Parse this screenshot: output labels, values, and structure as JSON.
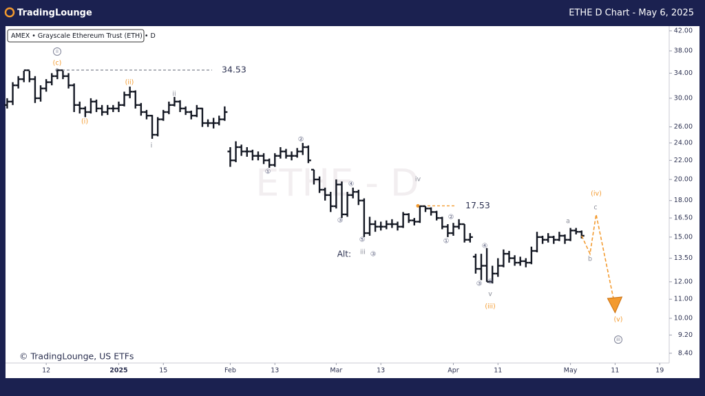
{
  "header": {
    "logo": "TradingLounge",
    "title": "ETHE D Chart - May 6, 2025"
  },
  "chart_data": {
    "type": "ohlc",
    "symbol_label": "AMEX • Grayscale Ethereum Trust (ETH) • D",
    "watermark": "ETHE - D",
    "footer": "© TradingLounge, US ETFs",
    "color": "#131722",
    "log_scale": true,
    "grid": false,
    "xlim": [
      -7.3,
      111.7
    ],
    "xticks": [
      {
        "value": 0,
        "label": "12"
      },
      {
        "value": 13,
        "label": "2025"
      },
      {
        "value": 21,
        "label": "15"
      },
      {
        "value": 33,
        "label": "Feb"
      },
      {
        "value": 41,
        "label": "13"
      },
      {
        "value": 52,
        "label": "Mar"
      },
      {
        "value": 60,
        "label": "13"
      },
      {
        "value": 73,
        "label": "Apr"
      },
      {
        "value": 81,
        "label": "11"
      },
      {
        "value": 94,
        "label": "May"
      },
      {
        "value": 102,
        "label": "11"
      },
      {
        "value": 110,
        "label": "19"
      }
    ],
    "ylim": [
      8.0,
      43.0
    ],
    "yticks": [
      {
        "value": 42,
        "label": "42.00"
      },
      {
        "value": 38,
        "label": "38.00"
      },
      {
        "value": 34,
        "label": "34.00"
      },
      {
        "value": 30,
        "label": "30.00"
      },
      {
        "value": 26,
        "label": "26.00"
      },
      {
        "value": 24,
        "label": "24.00"
      },
      {
        "value": 22,
        "label": "22.00"
      },
      {
        "value": 20,
        "label": "20.00"
      },
      {
        "value": 18,
        "label": "18.00"
      },
      {
        "value": 16.5,
        "label": "16.50"
      },
      {
        "value": 15,
        "label": "15.00"
      },
      {
        "value": 13.5,
        "label": "13.50"
      },
      {
        "value": 12,
        "label": "12.00"
      },
      {
        "value": 11,
        "label": "11.00"
      },
      {
        "value": 10,
        "label": "10.00"
      },
      {
        "value": 9.2,
        "label": "9.20"
      },
      {
        "value": 8.4,
        "label": "8.40"
      }
    ],
    "x": [
      -7,
      -6,
      -5,
      -4,
      -3,
      -2,
      -1,
      0,
      1,
      2,
      3,
      4,
      5,
      6,
      7,
      8,
      9,
      10,
      11,
      12,
      13,
      14,
      15,
      16,
      17,
      18,
      19,
      20,
      21,
      22,
      23,
      24,
      25,
      26,
      27,
      28,
      29,
      30,
      31,
      32,
      33,
      34,
      35,
      36,
      37,
      38,
      39,
      40,
      41,
      42,
      43,
      44,
      45,
      46,
      47,
      48,
      49,
      50,
      51,
      52,
      53,
      54,
      55,
      56,
      57,
      58,
      59,
      60,
      61,
      62,
      63,
      64,
      65,
      66,
      67,
      68,
      69,
      70,
      71,
      72,
      73,
      74,
      75,
      76,
      77,
      78,
      79,
      80,
      81,
      82,
      83,
      84,
      85,
      86,
      87,
      88,
      89,
      90,
      91,
      92,
      93,
      94,
      95,
      96
    ],
    "open": [
      29,
      29.5,
      32,
      33,
      34.5,
      33,
      30,
      31.5,
      32.5,
      33.5,
      34.5,
      33.5,
      32,
      29,
      28.5,
      28,
      29.5,
      28.5,
      28,
      28.5,
      28.5,
      29,
      30.5,
      31,
      29,
      28,
      27.5,
      25,
      27,
      28,
      29,
      29.5,
      28.5,
      28,
      27.5,
      28.5,
      26.5,
      26.5,
      26.5,
      27,
      23,
      22,
      23.5,
      23,
      23,
      22.5,
      22.5,
      22,
      21.5,
      22.5,
      23,
      22.5,
      22.5,
      23,
      23.5,
      21,
      20,
      19,
      18.5,
      17.5,
      19.5,
      16.8,
      18.5,
      18.8,
      18,
      15.3,
      16,
      15.8,
      15.8,
      16,
      16,
      15.8,
      16.8,
      16.3,
      16.2,
      17.5,
      17.3,
      17,
      16.5,
      15.8,
      15.3,
      15.8,
      16,
      14.8,
      13.6,
      12.8,
      13,
      12,
      12.5,
      13,
      13.8,
      13.5,
      13.2,
      13.3,
      13.2,
      14,
      15,
      14.8,
      15,
      14.8,
      15.1,
      14.8,
      15.5,
      15.4
    ],
    "high": [
      30,
      32.5,
      33.5,
      34.4,
      34.4,
      33.5,
      32,
      33,
      34,
      34.53,
      34.4,
      34,
      32.3,
      29.5,
      28.8,
      30,
      29.8,
      29,
      29,
      29,
      29.5,
      31,
      31.8,
      31.2,
      29.3,
      28.3,
      27.6,
      27.3,
      28.3,
      29.5,
      30.2,
      29.7,
      28.8,
      28.2,
      29,
      28.6,
      27,
      27.2,
      27.5,
      28.8,
      23.5,
      24.2,
      23.8,
      23.5,
      23.2,
      23,
      22.8,
      22.2,
      22.8,
      23.5,
      23.3,
      23,
      23.4,
      24,
      23.7,
      21,
      20.3,
      19.2,
      18.8,
      20,
      19.8,
      18.8,
      19.2,
      19,
      18.2,
      16.6,
      16.3,
      16.2,
      16.3,
      16.4,
      16.2,
      17,
      16.9,
      16.5,
      17.53,
      17.5,
      17.4,
      17.1,
      16.6,
      16,
      16.1,
      16.4,
      16,
      15.3,
      13.8,
      13.8,
      14.2,
      13,
      13.5,
      14.1,
      14,
      13.7,
      13.6,
      13.5,
      14.3,
      15.4,
      15.1,
      15.3,
      15.1,
      15.4,
      15.2,
      15.7,
      15.7,
      15.5
    ],
    "low": [
      28.5,
      29,
      31.5,
      32.5,
      32.5,
      29.3,
      29.5,
      31,
      32,
      33,
      33,
      31.5,
      28,
      27.8,
      27.3,
      27.8,
      28,
      27.5,
      27.6,
      28,
      28,
      28.8,
      30,
      28.5,
      27.5,
      27,
      24.5,
      24.8,
      26.8,
      27.7,
      28.8,
      28,
      27.6,
      27,
      27.3,
      26,
      26,
      25.8,
      26.2,
      26.8,
      21.3,
      21.8,
      22.5,
      22.4,
      22,
      22,
      21.6,
      21.2,
      21.3,
      22.2,
      22.2,
      22,
      22.3,
      22.6,
      21.7,
      19.5,
      18.7,
      18,
      17,
      17.3,
      16.5,
      16.6,
      18.2,
      17.6,
      15,
      15.1,
      15.4,
      15.5,
      15.6,
      15.7,
      15.5,
      15.7,
      16.1,
      15.9,
      16.1,
      17,
      16.7,
      16.3,
      15.6,
      15,
      15.1,
      15.6,
      14.6,
      14.6,
      12.5,
      12.1,
      12,
      11.9,
      12.3,
      12.9,
      13.2,
      13,
      13,
      12.9,
      13.1,
      13.9,
      14.5,
      14.6,
      14.5,
      14.7,
      14.5,
      14.7,
      15.2,
      14.9
    ],
    "close": [
      29.5,
      32,
      33,
      34.5,
      33,
      30,
      31.5,
      32.5,
      33.5,
      34.5,
      33.5,
      32,
      29,
      28.5,
      28,
      29.5,
      28.5,
      28,
      28.5,
      28.5,
      29,
      30.5,
      31,
      29,
      28,
      27.5,
      25,
      27,
      28,
      29,
      29.5,
      28.5,
      28,
      27.5,
      28.5,
      26.5,
      26.5,
      26.5,
      27,
      28,
      22,
      23.5,
      23,
      23,
      22.5,
      22.5,
      22,
      21.5,
      22.5,
      23,
      22.5,
      22.5,
      23,
      23.5,
      22,
      20,
      19,
      18.5,
      17.5,
      19.5,
      16.8,
      18.5,
      18.8,
      18,
      15.3,
      16,
      15.8,
      15.8,
      16,
      16,
      15.8,
      16.8,
      16.3,
      16.2,
      17.5,
      17.3,
      17,
      16.5,
      15.8,
      15.3,
      15.8,
      16,
      14.8,
      15,
      12.8,
      13,
      12,
      12.5,
      13,
      13.8,
      13.5,
      13.2,
      13.3,
      13.2,
      14,
      15,
      14.8,
      15,
      14.8,
      15.1,
      14.8,
      15.5,
      15.4,
      15.1
    ],
    "price_levels": [
      {
        "value": 34.53,
        "color": "#8a8d99"
      },
      {
        "value": 17.53,
        "color": "#f39a2e"
      }
    ],
    "projection": {
      "color": "#f39a2e",
      "x": [
        96,
        97.5,
        98.6,
        102
      ],
      "values": [
        15.1,
        13.8,
        16.8,
        10.6
      ]
    },
    "wave_labels": [
      {
        "text": "ii",
        "color": "#7d8196"
      },
      {
        "text": "(c)",
        "color": "#f39a2e"
      },
      {
        "text": "(ii)",
        "color": "#f39a2e"
      },
      {
        "text": "(i)",
        "color": "#f39a2e"
      },
      {
        "text": "ii",
        "color": "#8a8d99"
      },
      {
        "text": "i",
        "color": "#8a8d99"
      },
      {
        "text": "②",
        "color": "#5a5f7d"
      },
      {
        "text": "①",
        "color": "#5a5f7d"
      },
      {
        "text": "④",
        "color": "#5a5f7d"
      },
      {
        "text": "③",
        "color": "#5a5f7d"
      },
      {
        "text": "⑤",
        "color": "#5a5f7d"
      },
      {
        "text": "Alt:",
        "color": "#2b3050"
      },
      {
        "text": "iii",
        "color": "#8a8d99"
      },
      {
        "text": "③",
        "color": "#5a5f7d"
      },
      {
        "text": "iv",
        "color": "#8a8d99"
      },
      {
        "text": "②",
        "color": "#5a5f7d"
      },
      {
        "text": "①",
        "color": "#5a5f7d"
      },
      {
        "text": "④",
        "color": "#5a5f7d"
      },
      {
        "text": "③",
        "color": "#5a5f7d"
      },
      {
        "text": "⑤",
        "color": "#5a5f7d"
      },
      {
        "text": "v",
        "color": "#8a8d99"
      },
      {
        "text": "(iii)",
        "color": "#f39a2e"
      },
      {
        "text": "a",
        "color": "#8a8d99"
      },
      {
        "text": "b",
        "color": "#8a8d99"
      },
      {
        "text": "c",
        "color": "#8a8d99"
      },
      {
        "text": "(iv)",
        "color": "#f39a2e"
      },
      {
        "text": "(v)",
        "color": "#f39a2e"
      },
      {
        "text": "iii",
        "color": "#7d8196"
      }
    ]
  }
}
